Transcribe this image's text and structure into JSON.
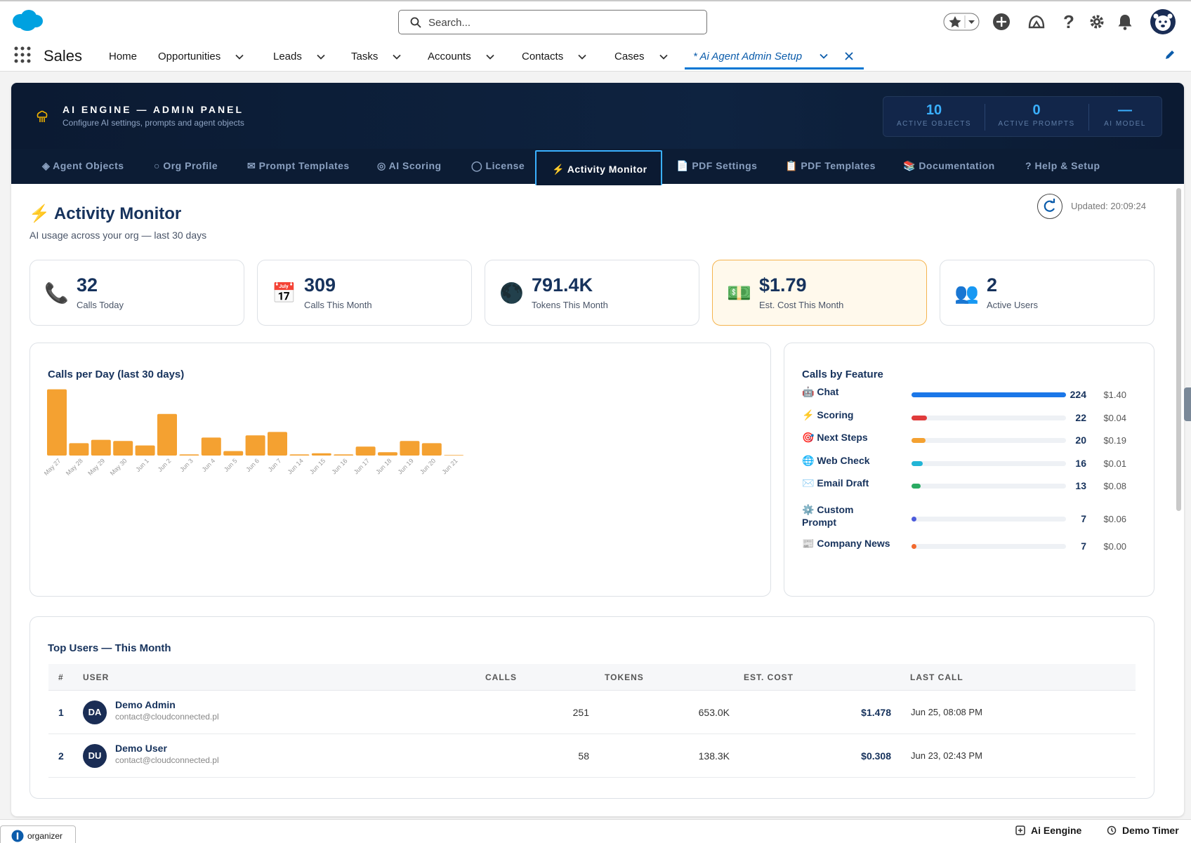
{
  "global": {
    "search_placeholder": "Search...",
    "app_name": "Sales",
    "nav": [
      {
        "label": "Home",
        "chev": false
      },
      {
        "label": "Opportunities",
        "chev": true
      },
      {
        "label": "Leads",
        "chev": true
      },
      {
        "label": "Tasks",
        "chev": true
      },
      {
        "label": "Accounts",
        "chev": true
      },
      {
        "label": "Contacts",
        "chev": true
      },
      {
        "label": "Cases",
        "chev": true
      }
    ],
    "active_tab": "* Ai Agent Admin Setup"
  },
  "header": {
    "title": "AI ENGINE — ADMIN PANEL",
    "subtitle": "Configure AI settings, prompts and agent objects",
    "stats": [
      {
        "value": "10",
        "label": "ACTIVE OBJECTS"
      },
      {
        "value": "0",
        "label": "ACTIVE PROMPTS"
      },
      {
        "value": "—",
        "label": "AI MODEL"
      }
    ]
  },
  "tabs": [
    {
      "label": "◈ Agent Objects"
    },
    {
      "label": "○ Org Profile"
    },
    {
      "label": "✉ Prompt Templates"
    },
    {
      "label": "◎ AI Scoring"
    },
    {
      "label": "◯ License"
    },
    {
      "label": "⚡ Activity Monitor",
      "active": true
    },
    {
      "label": "📄 PDF Settings"
    },
    {
      "label": "📋 PDF Templates"
    },
    {
      "label": "📚 Documentation"
    },
    {
      "label": "? Help & Setup"
    }
  ],
  "page": {
    "title": "Activity Monitor",
    "subtitle": "AI usage across your org — last 30 days",
    "updated": "Updated: 20:09:24"
  },
  "kpis": [
    {
      "icon": "📞",
      "value": "32",
      "label": "Calls Today"
    },
    {
      "icon": "📅",
      "value": "309",
      "label": "Calls This Month"
    },
    {
      "icon": "🌑",
      "value": "791.4K",
      "label": "Tokens This Month"
    },
    {
      "icon": "💵",
      "value": "$1.79",
      "label": "Est. Cost This Month",
      "highlight": true
    },
    {
      "icon": "👥",
      "value": "2",
      "label": "Active Users"
    }
  ],
  "chart_data": {
    "type": "bar",
    "title": "Calls per Day (last 30 days)",
    "categories": [
      "May 27",
      "May 28",
      "May 29",
      "May 30",
      "Jun 1",
      "Jun 2",
      "Jun 3",
      "Jun 4",
      "Jun 5",
      "Jun 6",
      "Jun 7",
      "Jun 14",
      "Jun 15",
      "Jun 16",
      "Jun 17",
      "Jun 18",
      "Jun 19",
      "Jun 20",
      "Jun 21"
    ],
    "values": [
      59,
      11,
      14,
      13,
      9,
      37,
      1,
      16,
      4,
      18,
      21,
      1,
      2,
      1,
      8,
      3,
      13,
      11,
      0
    ],
    "color": "#f4a131",
    "ylim": [
      0,
      60
    ]
  },
  "features": {
    "title": "Calls by Feature",
    "items": [
      {
        "icon": "🤖",
        "name": "Chat",
        "calls": "224",
        "count": 224,
        "cost": "$1.40",
        "color": "#1b77e8"
      },
      {
        "icon": "⚡",
        "name": "Scoring",
        "calls": "22",
        "count": 22,
        "cost": "$0.04",
        "color": "#e03b3b"
      },
      {
        "icon": "🎯",
        "name": "Next Steps",
        "calls": "20",
        "count": 20,
        "cost": "$0.19",
        "color": "#f4a131"
      },
      {
        "icon": "🌐",
        "name": "Web Check",
        "calls": "16",
        "count": 16,
        "cost": "$0.01",
        "color": "#22b5d6"
      },
      {
        "icon": "✉️",
        "name": "Email Draft",
        "calls": "13",
        "count": 13,
        "cost": "$0.08",
        "color": "#2aab62"
      },
      {
        "icon": "⚙️",
        "name": "Custom Prompt",
        "calls": "7",
        "count": 7,
        "cost": "$0.06",
        "color": "#4c5bdc"
      },
      {
        "icon": "📰",
        "name": "Company News",
        "calls": "7",
        "count": 7,
        "cost": "$0.00",
        "color": "#f26a2e"
      }
    ]
  },
  "users": {
    "title": "Top Users — This Month",
    "columns": [
      "#",
      "USER",
      "CALLS",
      "TOKENS",
      "EST. COST",
      "LAST CALL"
    ],
    "rows": [
      {
        "n": "1",
        "initials": "DA",
        "name": "Demo Admin",
        "email": "contact@cloudconnected.pl",
        "calls": "251",
        "tokens": "653.0K",
        "cost": "$1.478",
        "last": "Jun 25, 08:08 PM"
      },
      {
        "n": "2",
        "initials": "DU",
        "name": "Demo User",
        "email": "contact@cloudconnected.pl",
        "calls": "58",
        "tokens": "138.3K",
        "cost": "$0.308",
        "last": "Jun 23, 02:43 PM"
      }
    ]
  },
  "footer": {
    "organizer": "organizer",
    "ai_engine": "Ai Eengine",
    "demo_timer": "Demo Timer"
  }
}
